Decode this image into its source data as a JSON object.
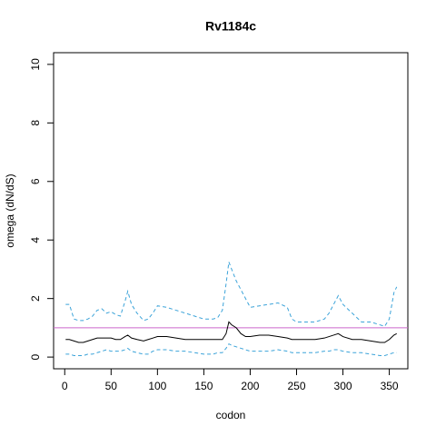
{
  "chart_data": {
    "type": "line",
    "title": "Rv1184c",
    "x_label": "codon",
    "y_label": "omega (dN/dS)",
    "x": [
      1,
      5,
      10,
      15,
      20,
      25,
      30,
      35,
      40,
      45,
      50,
      55,
      60,
      65,
      68,
      72,
      78,
      85,
      90,
      95,
      100,
      110,
      120,
      130,
      140,
      150,
      160,
      165,
      170,
      174,
      177,
      180,
      185,
      190,
      195,
      200,
      210,
      220,
      230,
      240,
      245,
      250,
      260,
      270,
      280,
      285,
      290,
      295,
      300,
      310,
      320,
      330,
      340,
      345,
      350,
      355,
      358
    ],
    "series": [
      {
        "color": "#000000",
        "dash": false,
        "values": [
          0.6,
          0.6,
          0.55,
          0.5,
          0.5,
          0.55,
          0.6,
          0.65,
          0.65,
          0.65,
          0.65,
          0.6,
          0.6,
          0.7,
          0.75,
          0.65,
          0.6,
          0.55,
          0.6,
          0.65,
          0.7,
          0.7,
          0.65,
          0.6,
          0.6,
          0.6,
          0.6,
          0.6,
          0.6,
          0.8,
          1.2,
          1.1,
          1.0,
          0.8,
          0.7,
          0.7,
          0.75,
          0.75,
          0.7,
          0.65,
          0.6,
          0.6,
          0.6,
          0.6,
          0.65,
          0.7,
          0.75,
          0.8,
          0.7,
          0.6,
          0.6,
          0.55,
          0.5,
          0.5,
          0.6,
          0.75,
          0.8
        ]
      },
      {
        "color": "#3ba3d9",
        "dash": true,
        "values": [
          1.8,
          1.8,
          1.3,
          1.25,
          1.25,
          1.3,
          1.4,
          1.6,
          1.65,
          1.5,
          1.55,
          1.45,
          1.4,
          1.9,
          2.25,
          1.8,
          1.5,
          1.25,
          1.3,
          1.5,
          1.75,
          1.7,
          1.6,
          1.5,
          1.4,
          1.3,
          1.3,
          1.35,
          1.6,
          2.5,
          3.25,
          3.0,
          2.6,
          2.3,
          2.0,
          1.7,
          1.75,
          1.8,
          1.85,
          1.7,
          1.3,
          1.2,
          1.2,
          1.2,
          1.3,
          1.5,
          1.8,
          2.1,
          1.8,
          1.5,
          1.2,
          1.2,
          1.1,
          1.05,
          1.3,
          2.2,
          2.4
        ]
      },
      {
        "color": "#3ba3d9",
        "dash": true,
        "values": [
          0.1,
          0.1,
          0.05,
          0.05,
          0.05,
          0.1,
          0.1,
          0.15,
          0.2,
          0.25,
          0.2,
          0.2,
          0.2,
          0.25,
          0.3,
          0.2,
          0.15,
          0.1,
          0.1,
          0.2,
          0.25,
          0.25,
          0.2,
          0.2,
          0.15,
          0.1,
          0.1,
          0.15,
          0.15,
          0.3,
          0.45,
          0.4,
          0.35,
          0.3,
          0.25,
          0.2,
          0.2,
          0.2,
          0.25,
          0.2,
          0.15,
          0.15,
          0.15,
          0.15,
          0.2,
          0.2,
          0.25,
          0.25,
          0.2,
          0.15,
          0.15,
          0.1,
          0.05,
          0.05,
          0.1,
          0.15,
          0.15
        ]
      }
    ],
    "hline": {
      "value": 1,
      "color": "#cc66cc"
    },
    "xlim": [
      -12,
      370
    ],
    "ylim": [
      -0.4,
      10.4
    ],
    "xticks": [
      0,
      50,
      100,
      150,
      200,
      250,
      300,
      350
    ],
    "yticks": [
      0,
      2,
      4,
      6,
      8,
      10
    ]
  }
}
